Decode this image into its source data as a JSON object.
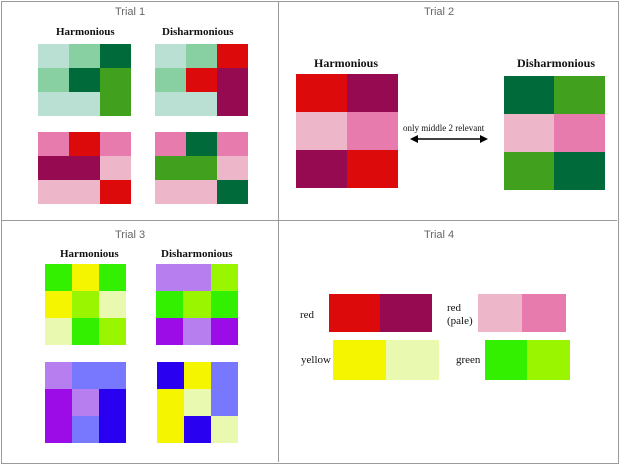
{
  "colors": {
    "mint": "#b9e0d2",
    "light_green": "#88cfa1",
    "dark_green": "#006a3a",
    "green": "#41a01e",
    "red": "#dc0a0a",
    "maroon": "#950a50",
    "pink": "#e87bae",
    "pale_pink": "#eeb6c9",
    "lime": "#32f000",
    "chartreuse": "#99f500",
    "yellow": "#f6f500",
    "pale_yellow": "#eaf9b0",
    "lavender": "#b67eee",
    "periwinkle": "#7878ff",
    "purple": "#9b0ce6",
    "blue": "#2a00f0"
  },
  "trial1": {
    "title": "Trial 1",
    "harmonious": "Harmonious",
    "disharmonious": "Disharmonious"
  },
  "trial2": {
    "title": "Trial 2",
    "harmonious": "Harmonious",
    "disharmonious": "Disharmonious",
    "note": "only middle 2 relevant",
    "arrow_icon": "double-arrow-icon"
  },
  "trial3": {
    "title": "Trial 3",
    "harmonious": "Harmonious",
    "disharmonious": "Disharmonious"
  },
  "trial4": {
    "title": "Trial 4",
    "red": "red",
    "red_pale_1": "red",
    "red_pale_2": "(pale)",
    "yellow": "yellow",
    "green": "green"
  }
}
